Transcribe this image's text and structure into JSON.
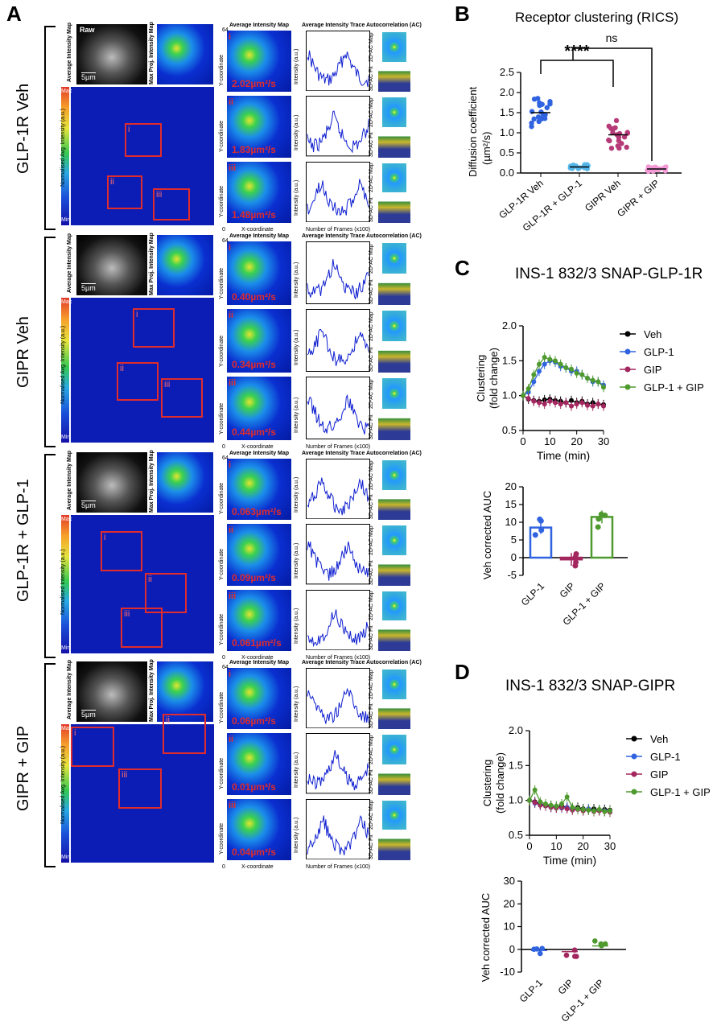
{
  "panels": {
    "A": "A",
    "B": "B",
    "C": "C",
    "D": "D"
  },
  "panelA": {
    "conditions": [
      "GLP-1R Veh",
      "GIPR Veh",
      "GLP-1R + GLP-1",
      "GIPR + GIP"
    ],
    "raw_label": "Raw",
    "avg_map_vertical": "Average Intensity Map",
    "maxproj_vertical": "Max Proj. Intensity Map",
    "scalebar": "5µm",
    "colorbar": {
      "max": "Max",
      "min": "Min",
      "label": "Normalised Avg. Intensity (a.u.)",
      "label_alt": "Normalised Intensity (a.u.)"
    },
    "col_avg_map": "Average Intensity Map",
    "col_trace": "Average Intensity Trace",
    "col_ac": "Autocorrelation (AC)",
    "ylabel_map": "Y-coordinate",
    "xlabel_map": "X-coordinate",
    "ylabel_trace": "Intensity (a.u.)",
    "xlabel_trace": "Number of Frames (x100)",
    "ac_2d": "2D-AC Map",
    "ac_3d": "3D-AC Fit",
    "tick_64": "64",
    "tick_0": "0",
    "roi": [
      "i",
      "ii",
      "iii"
    ],
    "diffusion": [
      [
        "2.02µm²/s",
        "1.83µm²/s",
        "1.48µm²/s"
      ],
      [
        "0.40µm²/s",
        "0.34µm²/s",
        "0.44µm²/s"
      ],
      [
        "0.063µm²/s",
        "0.09µm²/s",
        "0.061µm²/s"
      ],
      [
        "0.06µm²/s",
        "0.01µm²/s",
        "0.04µm²/s"
      ]
    ],
    "trace_xticks": [
      "0",
      "0.5",
      "1",
      "1.5",
      "2"
    ],
    "trace_yticks": [
      [
        "1150",
        "1100",
        "1050",
        "1000"
      ],
      [
        "850",
        "800",
        "750",
        "700"
      ],
      [
        "800",
        "750",
        "700",
        "650"
      ],
      [
        "700",
        "650",
        "600"
      ]
    ]
  },
  "panelB": {
    "title": "Receptor clustering (RICS)",
    "ylabel": "Diffusion coefficient (µm²/s)",
    "sig1": "****",
    "sig2": "ns",
    "chart_data": {
      "type": "scatter",
      "categories": [
        "GLP-1R Veh",
        "GLP-1R + GLP-1",
        "GIPR Veh",
        "GIPR + GIP"
      ],
      "ylim": [
        0,
        2.5
      ],
      "yticks": [
        "0.0",
        "0.5",
        "1.0",
        "1.5",
        "2.0",
        "2.5"
      ],
      "means": [
        1.5,
        0.15,
        0.95,
        0.1
      ],
      "colors": [
        "#2f63e0",
        "#56b7ea",
        "#b63a78",
        "#f39ad6"
      ]
    }
  },
  "panelC": {
    "title": "INS-1 832/3 SNAP-GLP-1R",
    "ylabel1": "Clustering",
    "ylabel2": "(fold change)",
    "xlabel": "Time (min)",
    "legend": [
      "Veh",
      "GLP-1",
      "GIP",
      "GLP-1 + GIP"
    ],
    "colors": [
      "#000000",
      "#2f63e0",
      "#a3265f",
      "#4f9a2f"
    ],
    "chart_data": {
      "type": "line",
      "x": [
        0,
        2,
        4,
        6,
        8,
        10,
        12,
        14,
        16,
        18,
        20,
        22,
        24,
        26,
        28,
        30
      ],
      "ylim": [
        0.5,
        2.0
      ],
      "yticks": [
        "0.5",
        "1.0",
        "1.5",
        "2.0"
      ],
      "xticks": [
        "0",
        "10",
        "20",
        "30"
      ],
      "series": [
        {
          "name": "Veh",
          "values": [
            1.0,
            0.95,
            0.93,
            0.92,
            0.94,
            0.95,
            0.93,
            0.92,
            0.9,
            0.93,
            0.9,
            0.92,
            0.88,
            0.9,
            0.88,
            0.87
          ]
        },
        {
          "name": "GLP-1",
          "values": [
            1.0,
            1.05,
            1.2,
            1.35,
            1.45,
            1.5,
            1.48,
            1.42,
            1.4,
            1.35,
            1.35,
            1.3,
            1.25,
            1.2,
            1.2,
            1.15
          ]
        },
        {
          "name": "GIP",
          "values": [
            1.0,
            0.96,
            0.92,
            0.9,
            0.88,
            0.92,
            0.9,
            0.88,
            0.9,
            0.85,
            0.88,
            0.9,
            0.86,
            0.85,
            0.88,
            0.85
          ]
        },
        {
          "name": "GLP-1 + GIP",
          "values": [
            1.0,
            1.1,
            1.3,
            1.45,
            1.55,
            1.52,
            1.5,
            1.45,
            1.4,
            1.38,
            1.32,
            1.3,
            1.25,
            1.22,
            1.2,
            1.12
          ]
        }
      ]
    },
    "auc_ylabel": "Veh corrected AUC",
    "auc_chart": {
      "type": "bar",
      "categories": [
        "GLP-1",
        "GIP",
        "GLP-1 + GIP"
      ],
      "values": [
        8.5,
        -0.5,
        11.5
      ],
      "ylim": [
        -5,
        20
      ],
      "yticks": [
        "-5",
        "0",
        "5",
        "10",
        "15",
        "20"
      ]
    }
  },
  "panelD": {
    "title": "INS-1 832/3 SNAP-GIPR",
    "ylabel1": "Clustering",
    "ylabel2": "(fold change)",
    "xlabel": "Time (min)",
    "legend": [
      "Veh",
      "GLP-1",
      "GIP",
      "GLP-1 + GIP"
    ],
    "chart_data": {
      "type": "line",
      "x": [
        0,
        2,
        4,
        6,
        8,
        10,
        12,
        14,
        16,
        18,
        20,
        22,
        24,
        26,
        28,
        30
      ],
      "ylim": [
        0.5,
        2.0
      ],
      "yticks": [
        "0.5",
        "1.0",
        "1.5",
        "2.0"
      ],
      "xticks": [
        "0",
        "10",
        "20",
        "30"
      ],
      "series": [
        {
          "name": "Veh",
          "values": [
            1.0,
            0.98,
            0.95,
            0.93,
            0.92,
            0.9,
            0.92,
            0.9,
            0.88,
            0.9,
            0.88,
            0.87,
            0.88,
            0.86,
            0.87,
            0.86
          ]
        },
        {
          "name": "GLP-1",
          "values": [
            1.0,
            0.96,
            0.94,
            0.92,
            0.9,
            0.91,
            0.89,
            0.9,
            0.88,
            0.87,
            0.86,
            0.88,
            0.85,
            0.86,
            0.85,
            0.84
          ]
        },
        {
          "name": "GIP",
          "values": [
            1.0,
            0.97,
            0.93,
            0.92,
            0.9,
            0.89,
            0.9,
            0.88,
            0.86,
            0.87,
            0.85,
            0.86,
            0.84,
            0.85,
            0.84,
            0.83
          ]
        },
        {
          "name": "GLP-1 + GIP",
          "values": [
            1.0,
            1.15,
            0.98,
            0.95,
            0.93,
            0.92,
            0.95,
            1.05,
            0.9,
            0.88,
            0.87,
            0.86,
            0.85,
            0.87,
            0.84,
            0.85
          ]
        }
      ]
    },
    "auc_ylabel": "Veh corrected AUC",
    "auc_chart": {
      "type": "scatter",
      "categories": [
        "GLP-1",
        "GIP",
        "GLP-1 + GIP"
      ],
      "values": [
        -0.5,
        -1,
        1.5
      ],
      "ylim": [
        -10,
        30
      ],
      "yticks": [
        "-10",
        "0",
        "10",
        "20",
        "30"
      ]
    }
  }
}
